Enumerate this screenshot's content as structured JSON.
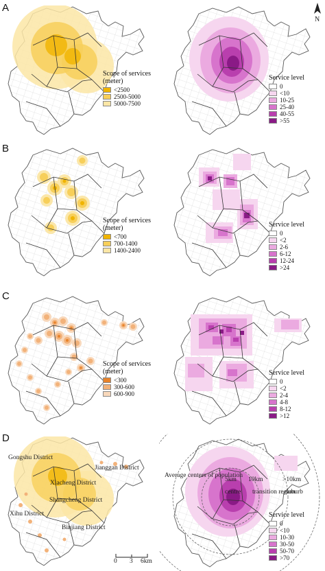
{
  "panels": [
    {
      "letter": "A",
      "scope_legend": {
        "title_line1": "Scope of services",
        "title_line2": "(meter)",
        "items": [
          "<2500",
          "2500-5000",
          "5000-7500"
        ],
        "colors": [
          "#f0b400",
          "#f7cf5a",
          "#fbe6a6"
        ]
      },
      "level_legend": {
        "title": "Service level",
        "items": [
          "0",
          "<10",
          "10-25",
          "25-40",
          "40-55",
          ">55"
        ],
        "colors": [
          "#ffffff",
          "#f6d6ef",
          "#ebaae0",
          "#d774cc",
          "#b93fae",
          "#8a1a86"
        ]
      }
    },
    {
      "letter": "B",
      "scope_legend": {
        "title_line1": "Scope of services",
        "title_line2": "(meter)",
        "items": [
          "<700",
          "700-1400",
          "1400-2400"
        ],
        "colors": [
          "#f0b400",
          "#f7cf5a",
          "#fbe6a6"
        ]
      },
      "level_legend": {
        "title": "Service level",
        "items": [
          "0",
          "<2",
          "2-6",
          "6-12",
          "12-24",
          ">24"
        ],
        "colors": [
          "#ffffff",
          "#f6d6ef",
          "#ebaae0",
          "#d774cc",
          "#b93fae",
          "#8a1a86"
        ]
      }
    },
    {
      "letter": "C",
      "scope_legend": {
        "title_line1": "Scope of services",
        "title_line2": "(meter)",
        "items": [
          "<300",
          "300-600",
          "600-900"
        ],
        "colors": [
          "#e8832a",
          "#f2b27a",
          "#f8d8bb"
        ]
      },
      "level_legend": {
        "title": "Service level",
        "items": [
          "0",
          "<2",
          "2-4",
          "4-8",
          "8-12",
          ">12"
        ],
        "colors": [
          "#ffffff",
          "#f6d6ef",
          "#ebaae0",
          "#d774cc",
          "#b93fae",
          "#8a1a86"
        ]
      }
    },
    {
      "letter": "D",
      "level_legend": {
        "title": "Service level",
        "items": [
          "0",
          "<10",
          "10-30",
          "30-50",
          "50-70",
          ">70"
        ],
        "colors": [
          "#ffffff",
          "#f6d6ef",
          "#ebaae0",
          "#d774cc",
          "#b93fae",
          "#8a1a86"
        ]
      },
      "districts": [
        "Gongshu District",
        "Jianggan District",
        "Xiacheng District",
        "Shangcheng District",
        "Xihu District",
        "Binjiang District"
      ],
      "rings": {
        "inner": "Average centers of population",
        "five": "5km",
        "ten": "10km",
        "gt_ten": ">10km",
        "centre": "centre",
        "transition": "transition region",
        "suburb": "suburb"
      }
    }
  ],
  "north": "N",
  "scale": {
    "labels": [
      "0",
      "3",
      "6km"
    ]
  }
}
